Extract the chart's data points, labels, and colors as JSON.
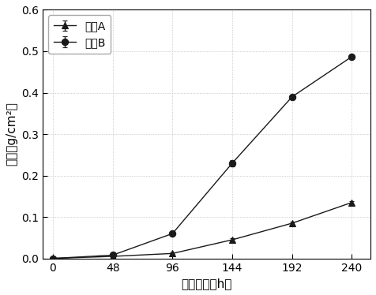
{
  "x": [
    0,
    48,
    96,
    144,
    192,
    240
  ],
  "sample_A": [
    0,
    0.005,
    0.012,
    0.045,
    0.085,
    0.135
  ],
  "sample_B": [
    0,
    0.008,
    0.06,
    0.23,
    0.39,
    0.487
  ],
  "sample_A_err": [
    0,
    0.002,
    0.002,
    0.003,
    0.003,
    0.004
  ],
  "sample_B_err": [
    0,
    0.002,
    0.003,
    0.008,
    0.004,
    0.005
  ],
  "label_A": "样品A",
  "label_B": "样品B",
  "xlabel": "腐蚀时间（h）",
  "ylabel": "失重（g/cm²）",
  "ylim": [
    0,
    0.6
  ],
  "yticks": [
    0.0,
    0.1,
    0.2,
    0.3,
    0.4,
    0.5,
    0.6
  ],
  "xticks": [
    0,
    48,
    96,
    144,
    192,
    240
  ],
  "line_color": "#1a1a1a",
  "bg_color": "#f0f0f0",
  "plot_bg": "#ffffff"
}
